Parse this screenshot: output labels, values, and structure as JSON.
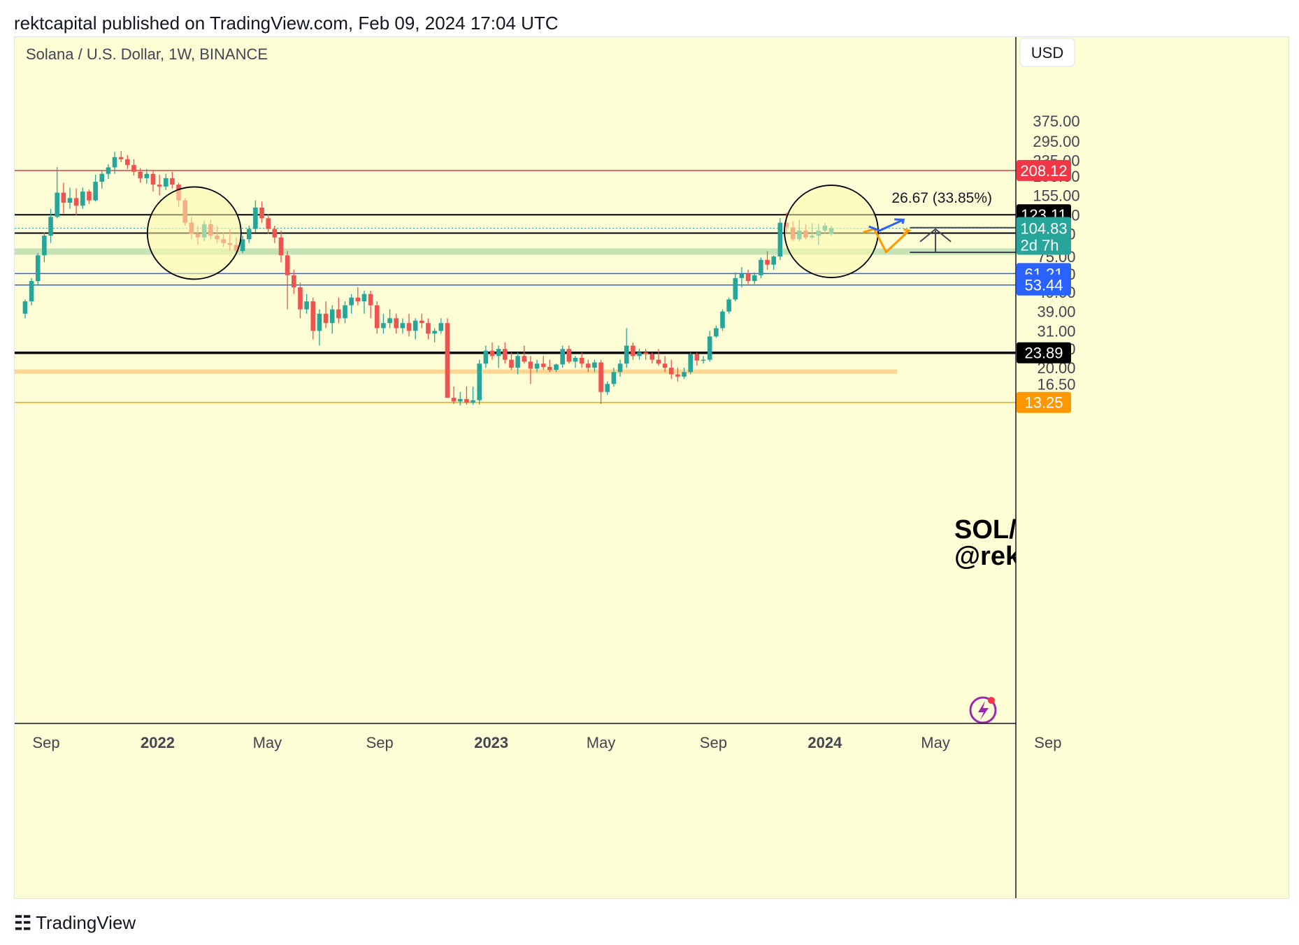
{
  "header": {
    "publisher_line": "rektcapital published on TradingView.com, Feb 09, 2024 17:04 UTC"
  },
  "footer": {
    "brand": "TradingView",
    "logo_icon": "tradingview-logo-icon"
  },
  "colors": {
    "background": "#fdfdd6",
    "up": "#26a69a",
    "down": "#ef5350",
    "red_line": "#f23645",
    "blue_line": "#2962ff",
    "black_line": "#000000",
    "green_zone": "#c5e3b4",
    "orange_zone": "#ffd58f",
    "orange_line": "#f7a600",
    "projection_blue": "#2962ff",
    "projection_orange": "#ff9800"
  },
  "chart_data": {
    "type": "candlestick",
    "title": "Solana / U.S. Dollar, 1W, BINANCE",
    "currency_label": "USD",
    "y_scale": "log",
    "ylim": [
      12.6,
      460
    ],
    "y_ticks": [
      "375.00",
      "295.00",
      "235.00",
      "195.00",
      "155.00",
      "123.00",
      "98.00",
      "75.00",
      "61.00",
      "49.00",
      "39.00",
      "31.00",
      "25.00",
      "20.00",
      "16.50"
    ],
    "x_ticks": [
      {
        "label": "Sep",
        "date": "2021-09-01",
        "bold": false
      },
      {
        "label": "2022",
        "date": "2022-01-01",
        "bold": true
      },
      {
        "label": "May",
        "date": "2022-05-01",
        "bold": false
      },
      {
        "label": "Sep",
        "date": "2022-09-01",
        "bold": false
      },
      {
        "label": "2023",
        "date": "2023-01-01",
        "bold": true
      },
      {
        "label": "May",
        "date": "2023-05-01",
        "bold": false
      },
      {
        "label": "Sep",
        "date": "2023-09-01",
        "bold": false
      },
      {
        "label": "2024",
        "date": "2024-01-01",
        "bold": true
      },
      {
        "label": "May",
        "date": "2024-05-01",
        "bold": false
      },
      {
        "label": "Sep",
        "date": "2024-09-01",
        "bold": false
      }
    ],
    "first_candle_date": "2021-08-09",
    "ohlc": [
      [
        38,
        45,
        36,
        44
      ],
      [
        44,
        58,
        42,
        56
      ],
      [
        56,
        78,
        53,
        76
      ],
      [
        76,
        100,
        70,
        96
      ],
      [
        96,
        132,
        88,
        120
      ],
      [
        120,
        217,
        118,
        160
      ],
      [
        160,
        180,
        125,
        142
      ],
      [
        142,
        170,
        132,
        150
      ],
      [
        150,
        168,
        122,
        137
      ],
      [
        137,
        170,
        132,
        162
      ],
      [
        162,
        166,
        140,
        146
      ],
      [
        146,
        198,
        144,
        182
      ],
      [
        182,
        210,
        168,
        200
      ],
      [
        200,
        224,
        188,
        216
      ],
      [
        216,
        260,
        200,
        244
      ],
      [
        244,
        262,
        230,
        238
      ],
      [
        238,
        250,
        212,
        222
      ],
      [
        222,
        238,
        196,
        205
      ],
      [
        205,
        214,
        180,
        190
      ],
      [
        190,
        212,
        178,
        200
      ],
      [
        200,
        208,
        162,
        176
      ],
      [
        176,
        198,
        155,
        172
      ],
      [
        172,
        200,
        165,
        190
      ],
      [
        190,
        205,
        168,
        176
      ],
      [
        176,
        180,
        135,
        146
      ],
      [
        146,
        150,
        108,
        112
      ],
      [
        112,
        120,
        92,
        98
      ],
      [
        98,
        108,
        86,
        94
      ],
      [
        94,
        115,
        90,
        110
      ],
      [
        110,
        116,
        92,
        96
      ],
      [
        96,
        108,
        88,
        92
      ],
      [
        92,
        100,
        84,
        88
      ],
      [
        88,
        104,
        80,
        86
      ],
      [
        86,
        94,
        78,
        80
      ],
      [
        80,
        96,
        78,
        92
      ],
      [
        92,
        108,
        88,
        104
      ],
      [
        104,
        146,
        100,
        134
      ],
      [
        134,
        144,
        112,
        118
      ],
      [
        118,
        124,
        98,
        104
      ],
      [
        104,
        108,
        88,
        94
      ],
      [
        94,
        102,
        70,
        76
      ],
      [
        76,
        80,
        40,
        60
      ],
      [
        60,
        64,
        48,
        52
      ],
      [
        52,
        55,
        36,
        40
      ],
      [
        40,
        48,
        38,
        44
      ],
      [
        44,
        46,
        28,
        31
      ],
      [
        31,
        40,
        26,
        38
      ],
      [
        38,
        44,
        32,
        34
      ],
      [
        34,
        42,
        30,
        40
      ],
      [
        40,
        46,
        34,
        36
      ],
      [
        36,
        44,
        34,
        42
      ],
      [
        42,
        48,
        38,
        46
      ],
      [
        46,
        52,
        42,
        44
      ],
      [
        44,
        50,
        38,
        48
      ],
      [
        48,
        50,
        36,
        42
      ],
      [
        42,
        44,
        30,
        32
      ],
      [
        32,
        38,
        30,
        34
      ],
      [
        34,
        40,
        32,
        36
      ],
      [
        36,
        38,
        30,
        32
      ],
      [
        32,
        36,
        30,
        34
      ],
      [
        34,
        38,
        29,
        31
      ],
      [
        31,
        36,
        28,
        35
      ],
      [
        35,
        38,
        32,
        34
      ],
      [
        34,
        36,
        28,
        30
      ],
      [
        30,
        32,
        27,
        31
      ],
      [
        31,
        36,
        30,
        34
      ],
      [
        34,
        36,
        14,
        14
      ],
      [
        14,
        16,
        13,
        13.4
      ],
      [
        13.4,
        15,
        12.8,
        13.8
      ],
      [
        13.8,
        16,
        12.9,
        13.2
      ],
      [
        13.2,
        16,
        12.9,
        13.6
      ],
      [
        13.6,
        22,
        12.9,
        21
      ],
      [
        21,
        26,
        20,
        24.5
      ],
      [
        24.5,
        27,
        22,
        23
      ],
      [
        23,
        26,
        20,
        25
      ],
      [
        25,
        27,
        21,
        22
      ],
      [
        22,
        24,
        19.5,
        20
      ],
      [
        20,
        24,
        18.5,
        23
      ],
      [
        23,
        26,
        21,
        21.5
      ],
      [
        21.5,
        23,
        16.5,
        19.8
      ],
      [
        19.8,
        22,
        19,
        21
      ],
      [
        21,
        23,
        19.5,
        20.2
      ],
      [
        20.2,
        22,
        19,
        19.5
      ],
      [
        19.5,
        21,
        19,
        20.8
      ],
      [
        20.8,
        26,
        20,
        25
      ],
      [
        25,
        26,
        21,
        21.5
      ],
      [
        21.5,
        23,
        20,
        22.5
      ],
      [
        22.5,
        24,
        20,
        21
      ],
      [
        21,
        22,
        19,
        20
      ],
      [
        20,
        22,
        19,
        21.3
      ],
      [
        21.3,
        22,
        13,
        15
      ],
      [
        15,
        17,
        14.5,
        16.5
      ],
      [
        16.5,
        20,
        16,
        19
      ],
      [
        19,
        22,
        18,
        21
      ],
      [
        21,
        32,
        20,
        26
      ],
      [
        26,
        27,
        22,
        23
      ],
      [
        23,
        25,
        22,
        24
      ],
      [
        24,
        25,
        22,
        23.5
      ],
      [
        23.5,
        24,
        21,
        22
      ],
      [
        22,
        25,
        20.5,
        21
      ],
      [
        21,
        23,
        19,
        20
      ],
      [
        20,
        22,
        17.5,
        18.5
      ],
      [
        18.5,
        20,
        17,
        18
      ],
      [
        18,
        20,
        17.5,
        19
      ],
      [
        19,
        24,
        18.5,
        23.5
      ],
      [
        23.5,
        24,
        20.5,
        21.8
      ],
      [
        21.8,
        23,
        21,
        22
      ],
      [
        22,
        31,
        21.5,
        29
      ],
      [
        29,
        33,
        28.5,
        32
      ],
      [
        32,
        40,
        31,
        39
      ],
      [
        39,
        46,
        38,
        45
      ],
      [
        45,
        62,
        44,
        58
      ],
      [
        58,
        66,
        52,
        61
      ],
      [
        61,
        64,
        54,
        56
      ],
      [
        56,
        62,
        54,
        60
      ],
      [
        60,
        74,
        58,
        72
      ],
      [
        72,
        80,
        64,
        68
      ],
      [
        68,
        76,
        64,
        75
      ],
      [
        75,
        118,
        72,
        112
      ],
      [
        112,
        126,
        100,
        106
      ],
      [
        106,
        114,
        90,
        92
      ],
      [
        92,
        116,
        90,
        102
      ],
      [
        102,
        110,
        92,
        94
      ],
      [
        94,
        112,
        92,
        96
      ],
      [
        96,
        110,
        86,
        102
      ],
      [
        102,
        112,
        98,
        108
      ],
      [
        98,
        108,
        96,
        104.83
      ]
    ],
    "horizontal_levels": [
      {
        "name": "resistance-208",
        "price": 208.12,
        "label": "208.12",
        "color": "#f23645",
        "width": 1.5
      },
      {
        "name": "resistance-123",
        "price": 123.11,
        "label": "123.11",
        "color": "#000000",
        "width": 2
      },
      {
        "name": "support-98",
        "price": 98.98,
        "label": "98.98",
        "color": "#000000",
        "width": 2
      },
      {
        "name": "support-61",
        "price": 61.21,
        "label": "61.21",
        "color": "#2962ff",
        "width": 1.5
      },
      {
        "name": "support-53",
        "price": 53.44,
        "label": "53.44",
        "color": "#2962ff",
        "width": 1.5
      },
      {
        "name": "support-23",
        "price": 23.89,
        "label": "23.89",
        "color": "#000000",
        "width": 3.5
      },
      {
        "name": "support-13",
        "price": 13.25,
        "label": "13.25",
        "color": "#f7a600",
        "width": 1.5
      }
    ],
    "current_price": {
      "price": 104.83,
      "label": "104.83",
      "countdown": "2d 7h",
      "color": "#26a69a"
    },
    "zones": [
      {
        "name": "green-demand-zone",
        "low": 76.5,
        "high": 82.5,
        "color": "#c5e3b4"
      },
      {
        "name": "orange-demand-zone",
        "low": 18.8,
        "high": 19.6,
        "color": "#ffd58f"
      }
    ],
    "measurement": {
      "text": "26.67 (33.85%)",
      "from": 78.8,
      "to": 105.5
    },
    "annotation": {
      "line1": "SOL/USD",
      "line2": "@rektcapital"
    }
  }
}
